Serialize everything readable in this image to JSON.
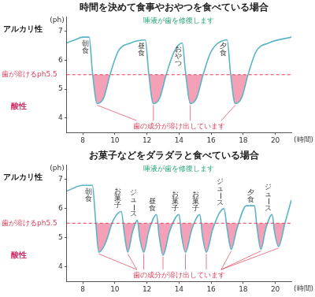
{
  "chart_data": [
    {
      "type": "line",
      "title": "時間を決めて食事やおやつを食べている場合",
      "x_label": "(時間)",
      "y_label": "(ph)",
      "x": [
        7,
        7.5,
        8,
        8.4,
        8.6,
        8.9,
        9.3,
        9.7,
        10.2,
        11,
        11.9,
        12.1,
        12.4,
        12.8,
        13.2,
        13.7,
        14.2,
        14.4,
        14.7,
        15.1,
        15.5,
        16.0,
        17.0,
        17.2,
        17.5,
        17.9,
        18.3,
        18.8,
        19.6,
        21
      ],
      "values": [
        6.6,
        6.7,
        6.8,
        6.8,
        5.6,
        4.5,
        4.7,
        5.5,
        6.3,
        6.6,
        6.7,
        5.6,
        4.5,
        4.7,
        5.5,
        6.3,
        6.6,
        5.6,
        4.5,
        4.7,
        5.5,
        6.3,
        6.7,
        5.6,
        4.5,
        4.7,
        5.5,
        6.3,
        6.6,
        6.8
      ],
      "color": "#5ab4c5",
      "line_style": "solid",
      "xlim": [
        7,
        21
      ],
      "xticks": [
        8,
        10,
        12,
        14,
        16,
        18,
        20
      ],
      "ylim": [
        3.5,
        7.5
      ],
      "yticks": [
        4,
        5,
        6,
        7
      ],
      "grid": false,
      "threshold": {
        "value": 5.5,
        "label": "歯が溶けるph5.5"
      },
      "events": [
        {
          "x": 8.4,
          "label": "朝食"
        },
        {
          "x": 11.9,
          "label": "昼食"
        },
        {
          "x": 14.2,
          "label": "おやつ"
        },
        {
          "x": 17.0,
          "label": "夕食"
        }
      ],
      "repair_note": "唾液が歯を修復します",
      "dissolve_note": "歯の成分が溶け出しています",
      "side_labels": {
        "alkaline": "アルカリ性",
        "acidic": "酸性"
      }
    },
    {
      "type": "line",
      "title": "お菓子などをダラダラと食べている場合",
      "x_label": "(時間)",
      "y_label": "(ph)",
      "x": [
        7,
        8,
        8.6,
        8.8,
        9.0,
        9.4,
        9.9,
        10.4,
        10.6,
        10.8,
        11.1,
        11.4,
        11.55,
        11.8,
        12.1,
        12.6,
        12.75,
        13.0,
        13.4,
        14.0,
        14.15,
        14.4,
        14.8,
        15.3,
        15.45,
        15.7,
        16.1,
        16.8,
        17.0,
        17.25,
        17.6,
        18.2,
        18.7,
        18.85,
        19.1,
        19.4,
        19.8,
        19.95,
        20.2,
        20.6,
        21
      ],
      "values": [
        6.6,
        6.8,
        6.8,
        5.6,
        4.5,
        4.8,
        5.6,
        5.9,
        5.1,
        4.5,
        5.2,
        5.6,
        5.0,
        4.5,
        5.2,
        5.8,
        5.1,
        4.4,
        5.2,
        5.8,
        5.1,
        4.5,
        5.3,
        5.8,
        5.1,
        4.5,
        5.3,
        6.0,
        5.3,
        4.6,
        5.3,
        6.1,
        6.1,
        5.4,
        4.6,
        5.3,
        5.8,
        5.2,
        4.7,
        5.5,
        6.3
      ],
      "color": "#5ab4c5",
      "line_style": "solid",
      "xlim": [
        7,
        21
      ],
      "xticks": [
        8,
        10,
        12,
        14,
        16,
        18,
        20
      ],
      "ylim": [
        3.5,
        7.5
      ],
      "yticks": [
        4,
        5,
        6,
        7
      ],
      "grid": false,
      "threshold": {
        "value": 5.5,
        "label": "歯が溶けるph5.5"
      },
      "events": [
        {
          "x": 8.6,
          "label": "朝食"
        },
        {
          "x": 10.4,
          "label": "お菓子"
        },
        {
          "x": 11.4,
          "label": "ジュース"
        },
        {
          "x": 12.6,
          "label": "昼食"
        },
        {
          "x": 14.0,
          "label": "お菓子"
        },
        {
          "x": 15.3,
          "label": "お菓子"
        },
        {
          "x": 16.8,
          "label": "ジュース"
        },
        {
          "x": 18.7,
          "label": "夕食"
        },
        {
          "x": 19.8,
          "label": "ジュース"
        }
      ],
      "repair_note": "唾液が歯を修復します",
      "dissolve_note": "歯の成分が溶け出しています",
      "side_labels": {
        "alkaline": "アルカリ性",
        "acidic": "酸性"
      }
    }
  ]
}
